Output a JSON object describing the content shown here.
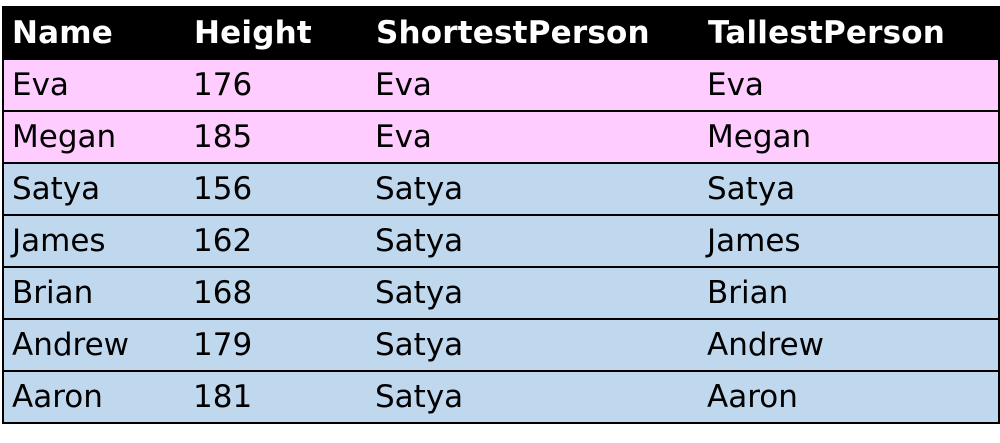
{
  "table": {
    "columns": [
      "Name",
      "Height",
      "ShortestPerson",
      "TallestPerson"
    ],
    "rows": [
      {
        "name": "Eva",
        "height": "176",
        "shortest": "Eva",
        "tallest": "Eva"
      },
      {
        "name": "Megan",
        "height": "185",
        "shortest": "Eva",
        "tallest": "Megan"
      },
      {
        "name": "Satya",
        "height": "156",
        "shortest": "Satya",
        "tallest": "Satya"
      },
      {
        "name": "James",
        "height": "162",
        "shortest": "Satya",
        "tallest": "James"
      },
      {
        "name": "Brian",
        "height": "168",
        "shortest": "Satya",
        "tallest": "Brian"
      },
      {
        "name": "Andrew",
        "height": "179",
        "shortest": "Satya",
        "tallest": "Andrew"
      },
      {
        "name": "Aaron",
        "height": "181",
        "shortest": "Satya",
        "tallest": "Aaron"
      }
    ]
  },
  "colors": {
    "header_background": "#000000",
    "header_text": "#ffffff",
    "group_a_fill": "#ffccff",
    "group_b_fill": "#c0d8ee"
  }
}
